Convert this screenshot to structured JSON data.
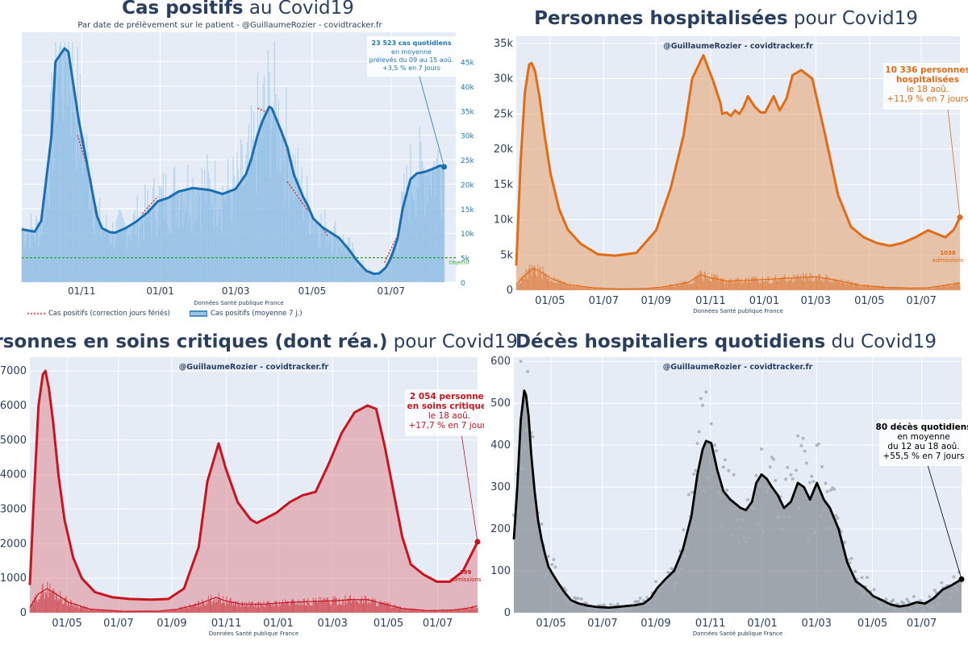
{
  "colors": {
    "blue": "#1f77b4",
    "orange": "#e8792b",
    "red": "#c8141e",
    "black": "#000000",
    "plotbg": "#e5ecf6",
    "green": "#2ca02c"
  },
  "chart_data": [
    {
      "id": "cas",
      "type": "area",
      "title_bold": "Cas positifs",
      "title_rest": " au Covid19",
      "subtitle": "Par date de prélèvement sur le patient - @GuillaumeRozier - covidtracker.fr",
      "source": "Données Santé publique France",
      "x_ticks": [
        "01/11",
        "01/01",
        "01/03",
        "01/05",
        "01/07"
      ],
      "y_ticks": [
        "0",
        "5k",
        "10k",
        "15k",
        "20k",
        "25k",
        "30k",
        "35k",
        "40k",
        "45k"
      ],
      "ylim": [
        0,
        51000
      ],
      "objective_label": "Objectif",
      "objective_value": 5000,
      "series": [
        {
          "name": "Cas positifs (moyenne 7 j.)",
          "x": [
            0,
            10,
            15,
            23,
            26,
            33,
            36,
            44,
            53,
            58,
            62,
            68,
            72,
            80,
            88,
            97,
            105,
            113,
            121,
            132,
            145,
            155,
            165,
            173,
            177,
            182,
            186,
            191,
            193,
            200,
            205,
            210,
            217,
            221,
            225,
            232,
            238,
            245,
            253,
            259,
            266,
            272,
            276,
            281,
            285,
            290,
            294,
            300,
            305,
            311,
            318,
            323,
            326
          ],
          "values": [
            10800,
            10300,
            12500,
            30000,
            45000,
            47700,
            47000,
            33000,
            20500,
            13500,
            11000,
            10200,
            10100,
            11000,
            12300,
            14200,
            16500,
            17200,
            18500,
            19200,
            18800,
            18000,
            19000,
            22000,
            25000,
            30000,
            33000,
            35800,
            35500,
            31000,
            27500,
            22000,
            17500,
            15500,
            13000,
            11200,
            10200,
            9000,
            6500,
            4300,
            2300,
            1700,
            1800,
            3000,
            5000,
            8800,
            15000,
            21000,
            22200,
            22500,
            23200,
            23800,
            23523
          ]
        },
        {
          "name": "Cas positifs (correction jours fériés)",
          "segments": [
            [
              [
                43,
                30000
              ],
              [
                54,
                20500
              ]
            ],
            [
              [
                93,
                14000
              ],
              [
                105,
                17500
              ]
            ],
            [
              [
                182,
                35500
              ],
              [
                191,
                34500
              ]
            ],
            [
              [
                205,
                20500
              ],
              [
                221,
                14500
              ]
            ],
            [
              [
                230,
                12000
              ],
              [
                236,
                9500
              ]
            ],
            [
              [
                280,
                4000
              ],
              [
                289,
                9000
              ]
            ]
          ]
        }
      ],
      "annotation": {
        "value_text": "23 523 cas quotidiens",
        "lines": [
          "en moyenne",
          "prélevés du 09 au 15 aoû.",
          "+3,5 % en 7 jours"
        ]
      }
    },
    {
      "id": "hosp",
      "type": "area",
      "title_bold": "Personnes hospitalisées",
      "title_rest": " pour Covid19",
      "subtitle": "@GuillaumeRozier - covidtracker.fr",
      "source": "Données Santé publique France",
      "x_ticks": [
        "01/05",
        "01/07",
        "01/09",
        "01/11",
        "01/01",
        "01/03",
        "01/05",
        "01/07"
      ],
      "y_ticks": [
        "0",
        "5k",
        "10k",
        "15k",
        "20k",
        "25k",
        "30k",
        "35k"
      ],
      "ylim": [
        0,
        36000
      ],
      "series": [
        {
          "name": "Personnes hospitalisées",
          "x": [
            0,
            5,
            10,
            15,
            18,
            22,
            27,
            33,
            40,
            50,
            60,
            75,
            95,
            115,
            140,
            163,
            180,
            195,
            205,
            218,
            230,
            238,
            240,
            245,
            250,
            255,
            260,
            265,
            270,
            278,
            285,
            290,
            300,
            307,
            315,
            322,
            332,
            345,
            360,
            375,
            390,
            405,
            420,
            435,
            450,
            465,
            480,
            500,
            510,
            517
          ],
          "values": [
            3500,
            18000,
            28000,
            32000,
            32200,
            31000,
            27500,
            22000,
            16500,
            11500,
            8600,
            6600,
            5100,
            4900,
            5300,
            8500,
            14500,
            22000,
            30000,
            33300,
            29500,
            26500,
            25000,
            25200,
            24700,
            25500,
            25000,
            26000,
            27500,
            26000,
            25200,
            25200,
            27500,
            25500,
            27200,
            30500,
            31200,
            30000,
            22000,
            13500,
            9000,
            7500,
            6700,
            6300,
            6700,
            7500,
            8500,
            7500,
            8600,
            10336
          ]
        },
        {
          "name": "Admissions",
          "x": [
            0,
            10,
            20,
            30,
            40,
            60,
            90,
            120,
            150,
            170,
            200,
            215,
            225,
            245,
            270,
            300,
            330,
            350,
            370,
            400,
            430,
            460,
            480,
            500,
            517
          ],
          "values": [
            800,
            2100,
            3100,
            2500,
            1700,
            800,
            350,
            200,
            250,
            450,
            1100,
            2200,
            1800,
            1300,
            1400,
            1600,
            1800,
            1900,
            1500,
            700,
            400,
            300,
            350,
            700,
            1036
          ]
        }
      ],
      "annotation": {
        "value_text": "10 336 personnes",
        "value_text2": "hospitalisées",
        "lines": [
          "le 18 aoû.",
          "+11,9 % en 7 jours"
        ],
        "admissions_value": "1036",
        "admissions_label": "admissions"
      }
    },
    {
      "id": "rea",
      "type": "area",
      "title_bold": "Personnes en soins critiques (dont réa.)",
      "title_rest": " pour Covid19",
      "subtitle": "@GuillaumeRozier - covidtracker.fr",
      "source": "Données Santé publique France",
      "x_ticks": [
        "01/05",
        "01/07",
        "01/09",
        "01/11",
        "01/01",
        "01/03",
        "01/05",
        "01/07"
      ],
      "y_ticks": [
        "0",
        "1000",
        "2000",
        "3000",
        "4000",
        "5000",
        "6000",
        "7000"
      ],
      "ylim": [
        0,
        7400
      ],
      "series": [
        {
          "name": "Personnes en soins critiques",
          "x": [
            0,
            5,
            10,
            15,
            18,
            22,
            27,
            33,
            40,
            50,
            60,
            75,
            95,
            115,
            140,
            160,
            178,
            195,
            205,
            218,
            226,
            240,
            255,
            262,
            270,
            285,
            300,
            315,
            330,
            345,
            360,
            375,
            390,
            400,
            410,
            420,
            430,
            440,
            455,
            470,
            485,
            500,
            510,
            517
          ],
          "values": [
            800,
            3500,
            6000,
            6900,
            7000,
            6500,
            5500,
            4000,
            2700,
            1600,
            1000,
            600,
            450,
            400,
            380,
            400,
            700,
            1900,
            3800,
            4900,
            4200,
            3200,
            2700,
            2600,
            2700,
            2900,
            3200,
            3400,
            3500,
            4300,
            5200,
            5800,
            6000,
            5900,
            4800,
            3500,
            2200,
            1400,
            1100,
            900,
            900,
            1200,
            1700,
            2054
          ]
        },
        {
          "name": "Admissions",
          "x": [
            0,
            10,
            20,
            30,
            45,
            70,
            110,
            150,
            170,
            195,
            215,
            225,
            245,
            270,
            300,
            330,
            355,
            370,
            390,
            410,
            430,
            460,
            490,
            510,
            517
          ],
          "values": [
            150,
            550,
            700,
            550,
            300,
            100,
            40,
            50,
            100,
            250,
            450,
            350,
            250,
            250,
            300,
            330,
            350,
            380,
            380,
            250,
            120,
            60,
            80,
            150,
            199
          ]
        }
      ],
      "annotation": {
        "value_text": "2 054 personnes",
        "value_text2": "en soins critiques",
        "lines": [
          "le 18 aoû.",
          "+17,7 % en 7 jours"
        ],
        "admissions_value": "199",
        "admissions_label": "admissions"
      }
    },
    {
      "id": "deces",
      "type": "area",
      "title_bold": "Décès hospitaliers quotidiens",
      "title_rest": " du Covid19",
      "subtitle": "@GuillaumeRozier - covidtracker.fr",
      "source": "Données Santé publique France",
      "x_ticks": [
        "01/05",
        "01/07",
        "01/09",
        "01/11",
        "01/01",
        "01/03",
        "01/05",
        "01/07"
      ],
      "y_ticks": [
        "0",
        "100",
        "200",
        "300",
        "400",
        "500",
        "600"
      ],
      "ylim": [
        0,
        610
      ],
      "series": [
        {
          "name": "Décès hospitaliers (moyenne 7 j.)",
          "x": [
            0,
            4,
            8,
            12,
            14,
            17,
            20,
            24,
            28,
            32,
            36,
            40,
            44,
            50,
            58,
            66,
            75,
            85,
            95,
            110,
            125,
            140,
            150,
            158,
            166,
            175,
            185,
            195,
            205,
            212,
            218,
            222,
            228,
            235,
            242,
            250,
            256,
            262,
            268,
            275,
            280,
            286,
            292,
            298,
            305,
            312,
            320,
            328,
            335,
            342,
            350,
            358,
            365,
            375,
            385,
            395,
            405,
            415,
            425,
            435,
            445,
            455,
            465,
            475,
            485,
            495,
            505,
            517
          ],
          "values": [
            175,
            300,
            460,
            530,
            520,
            470,
            380,
            290,
            220,
            175,
            140,
            110,
            95,
            75,
            50,
            30,
            22,
            17,
            14,
            12,
            15,
            18,
            22,
            35,
            60,
            80,
            100,
            150,
            230,
            330,
            390,
            410,
            405,
            340,
            290,
            270,
            260,
            250,
            245,
            265,
            310,
            330,
            320,
            300,
            280,
            250,
            265,
            310,
            300,
            270,
            310,
            270,
            250,
            200,
            120,
            75,
            60,
            40,
            30,
            20,
            15,
            18,
            25,
            22,
            35,
            55,
            65,
            80
          ]
        }
      ],
      "annotation": {
        "value_text": "80 décès quotidiens",
        "lines": [
          "en moyenne",
          "du 12 au 18 aoû.",
          "+55,5 % en 7 jours"
        ]
      }
    }
  ],
  "legend": {
    "correction": "Cas positifs (correction jours fériés)",
    "moyenne": "Cas positifs (moyenne 7 j.)"
  }
}
